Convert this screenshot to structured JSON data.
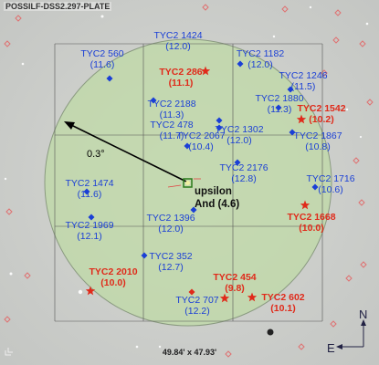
{
  "survey_label": "POSSILF-DSS2.297-PLATE",
  "fov_label": "49.84' x 47.93'",
  "scale_label": "0.3°",
  "compass": {
    "north": "N",
    "east": "E"
  },
  "colors": {
    "field_fill": "#bfdaa6",
    "grid_line": "#444444",
    "blue_marker": "#1a3fd6",
    "red_marker": "#e02a1a",
    "target_marker": "#2a7a1a"
  },
  "target": {
    "name": "upsilon",
    "name2": "And (4.6)"
  },
  "stars": [
    {
      "id": "TYC2 1424",
      "mag": "(12.0)",
      "color": "blue"
    },
    {
      "id": "TYC2 560",
      "mag": "(11.6)",
      "color": "blue"
    },
    {
      "id": "TYC2 286",
      "mag": "(11.1)",
      "color": "red"
    },
    {
      "id": "TYC2 1182",
      "mag": "(12.0)",
      "color": "blue"
    },
    {
      "id": "TYC2 1246",
      "mag": "(11.5)",
      "color": "blue"
    },
    {
      "id": "TYC2 2188",
      "mag": "(11.3)",
      "color": "blue"
    },
    {
      "id": "TYC2 1880",
      "mag": "(11.3)",
      "color": "blue"
    },
    {
      "id": "TYC2 1542",
      "mag": "(10.2)",
      "color": "red"
    },
    {
      "id": "TYC2 478",
      "mag": "(11.7)",
      "color": "blue"
    },
    {
      "id": "TYC2 1302",
      "mag": "(12.0)",
      "color": "blue"
    },
    {
      "id": "TYC2 1867",
      "mag": "(10.8)",
      "color": "blue"
    },
    {
      "id": "TYC2 2067",
      "mag": "(10.4)",
      "color": "blue"
    },
    {
      "id": "TYC2 2176",
      "mag": "(12.8)",
      "color": "blue"
    },
    {
      "id": "TYC2 1716",
      "mag": "(10.6)",
      "color": "blue"
    },
    {
      "id": "TYC2 1474",
      "mag": "(11.6)",
      "color": "blue"
    },
    {
      "id": "TYC2 1668",
      "mag": "(10.0)",
      "color": "red"
    },
    {
      "id": "TYC2 1396",
      "mag": "(12.0)",
      "color": "blue"
    },
    {
      "id": "TYC2 1969",
      "mag": "(12.1)",
      "color": "blue"
    },
    {
      "id": "TYC2 352",
      "mag": "(12.7)",
      "color": "blue"
    },
    {
      "id": "TYC2 2010",
      "mag": "(10.0)",
      "color": "red"
    },
    {
      "id": "TYC2 454",
      "mag": "(9.8)",
      "color": "red"
    },
    {
      "id": "TYC2 707",
      "mag": "(12.2)",
      "color": "blue"
    },
    {
      "id": "TYC2 602",
      "mag": "(10.1)",
      "color": "red"
    }
  ]
}
